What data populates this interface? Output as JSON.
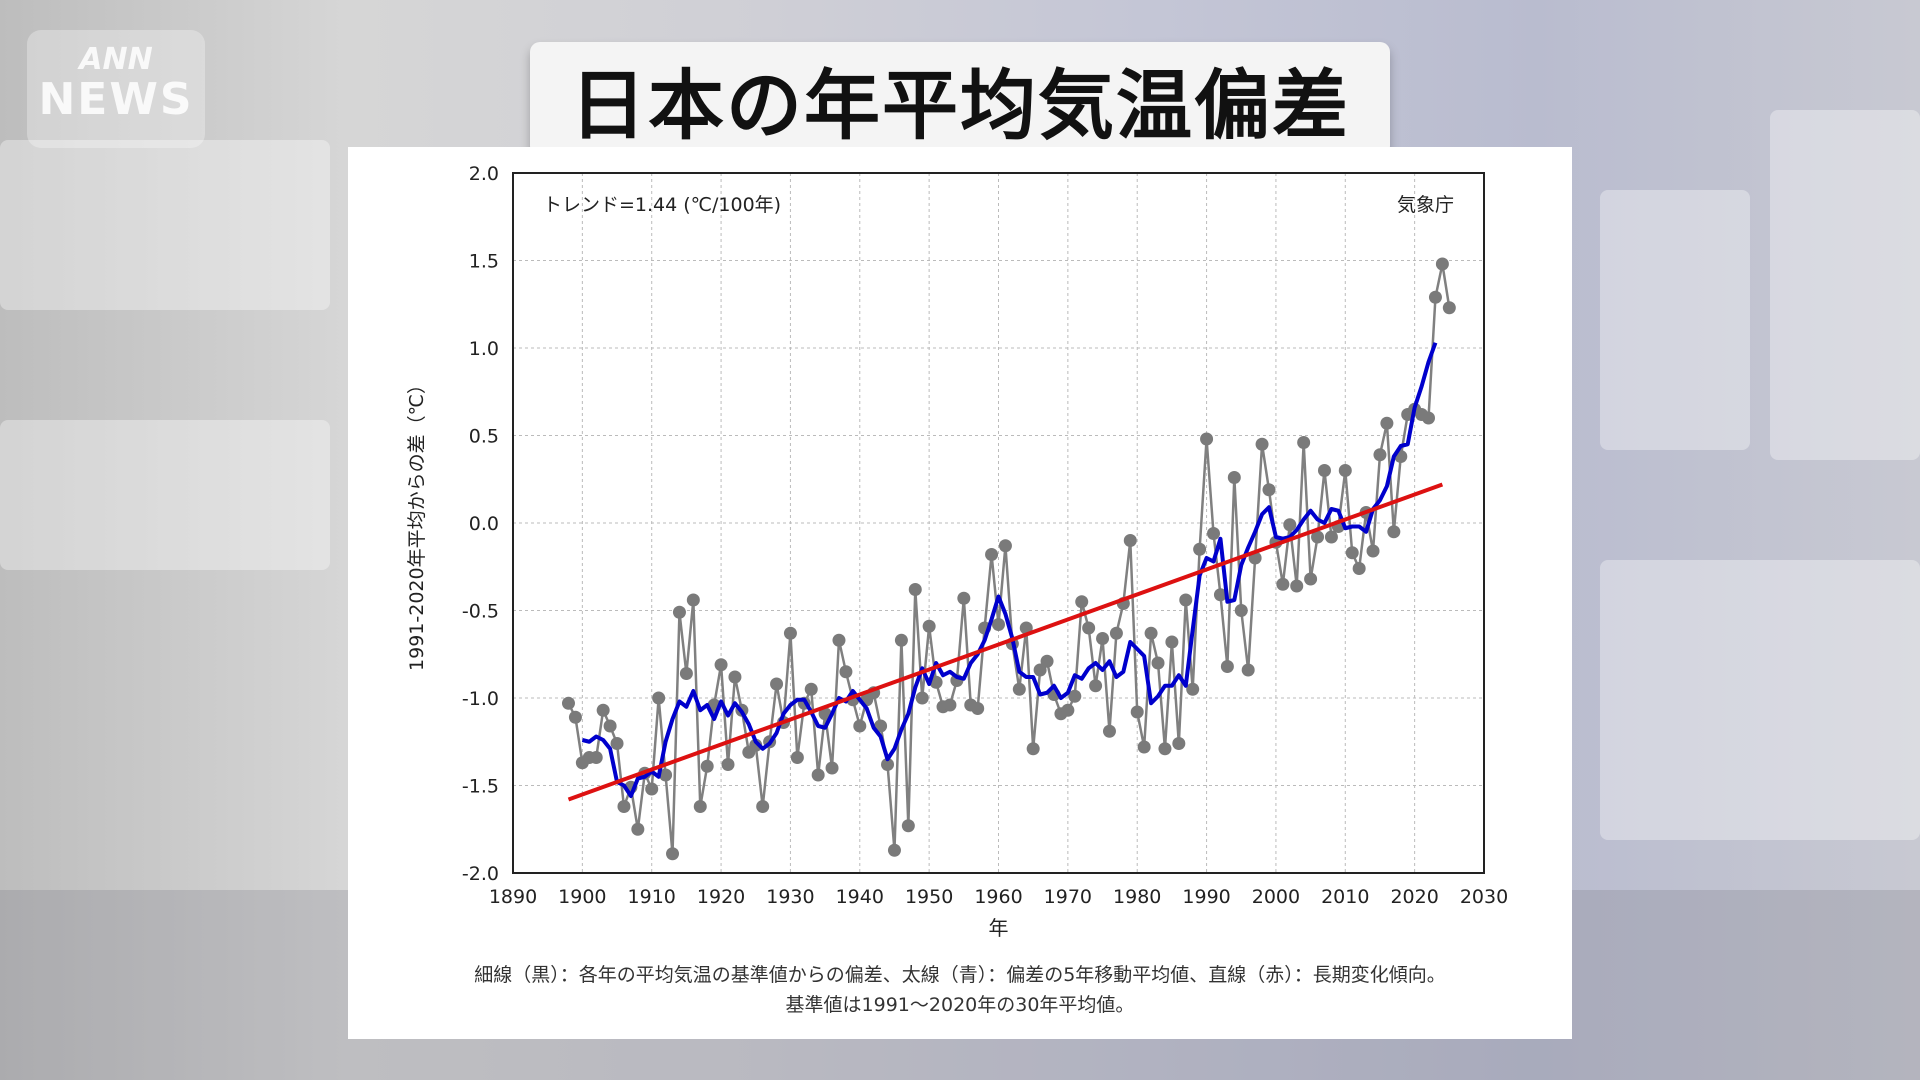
{
  "logo": {
    "line1": "ANN",
    "line2": "NEWS"
  },
  "title": "日本の年平均気温偏差",
  "chart_data": {
    "type": "line",
    "trend_label": "トレンド=1.44 (℃/100年)",
    "source_label": "気象庁",
    "xlabel": "年",
    "ylabel": "1991-2020年平均からの差（℃）",
    "xlim": [
      1890,
      2030
    ],
    "ylim": [
      -2.0,
      2.0
    ],
    "xticks": [
      1890,
      1900,
      1910,
      1920,
      1930,
      1940,
      1950,
      1960,
      1970,
      1980,
      1990,
      2000,
      2010,
      2020,
      2030
    ],
    "yticks": [
      -2.0,
      -1.5,
      -1.0,
      -0.5,
      0.0,
      0.5,
      1.0,
      1.5,
      2.0
    ],
    "ytick_labels": [
      "-2.0",
      "-1.5",
      "-1.0",
      "-0.5",
      "0.0",
      "0.5",
      "1.0",
      "1.5",
      "2.0"
    ],
    "grid": true,
    "series": [
      {
        "name": "細線（黒）",
        "color": "#808080",
        "x": [
          1898,
          1899,
          1900,
          1901,
          1902,
          1903,
          1904,
          1905,
          1906,
          1907,
          1908,
          1909,
          1910,
          1911,
          1912,
          1913,
          1914,
          1915,
          1916,
          1917,
          1918,
          1919,
          1920,
          1921,
          1922,
          1923,
          1924,
          1925,
          1926,
          1927,
          1928,
          1929,
          1930,
          1931,
          1932,
          1933,
          1934,
          1935,
          1936,
          1937,
          1938,
          1939,
          1940,
          1941,
          1942,
          1943,
          1944,
          1945,
          1946,
          1947,
          1948,
          1949,
          1950,
          1951,
          1952,
          1953,
          1954,
          1955,
          1956,
          1957,
          1958,
          1959,
          1960,
          1961,
          1962,
          1963,
          1964,
          1965,
          1966,
          1967,
          1968,
          1969,
          1970,
          1971,
          1972,
          1973,
          1974,
          1975,
          1976,
          1977,
          1978,
          1979,
          1980,
          1981,
          1982,
          1983,
          1984,
          1985,
          1986,
          1987,
          1988,
          1989,
          1990,
          1991,
          1992,
          1993,
          1994,
          1995,
          1996,
          1997,
          1998,
          1999,
          2000,
          2001,
          2002,
          2003,
          2004,
          2005,
          2006,
          2007,
          2008,
          2009,
          2010,
          2011,
          2012,
          2013,
          2014,
          2015,
          2016,
          2017,
          2018,
          2019,
          2020,
          2021,
          2022,
          2023,
          2024,
          2025
        ],
        "values": [
          -1.03,
          -1.11,
          -1.37,
          -1.34,
          -1.34,
          -1.07,
          -1.16,
          -1.26,
          -1.62,
          -1.51,
          -1.75,
          -1.43,
          -1.52,
          -1.0,
          -1.44,
          -1.89,
          -0.51,
          -0.86,
          -0.44,
          -1.62,
          -1.39,
          -1.04,
          -0.81,
          -1.38,
          -0.88,
          -1.07,
          -1.31,
          -1.27,
          -1.62,
          -1.25,
          -0.92,
          -1.14,
          -0.63,
          -1.34,
          -1.03,
          -0.95,
          -1.44,
          -1.09,
          -1.4,
          -0.67,
          -0.85,
          -1.01,
          -1.16,
          -1.01,
          -0.97,
          -1.16,
          -1.38,
          -1.87,
          -0.67,
          -1.73,
          -0.38,
          -1.0,
          -0.59,
          -0.91,
          -1.05,
          -1.04,
          -0.9,
          -0.43,
          -1.04,
          -1.06,
          -0.6,
          -0.18,
          -0.58,
          -0.13,
          -0.69,
          -0.95,
          -0.6,
          -1.29,
          -0.84,
          -0.79,
          -0.98,
          -1.09,
          -1.07,
          -0.99,
          -0.45,
          -0.6,
          -0.93,
          -0.66,
          -1.19,
          -0.63,
          -0.46,
          -0.1,
          -1.08,
          -1.28,
          -0.63,
          -0.8,
          -1.29,
          -0.68,
          -1.26,
          -0.44,
          -0.95,
          -0.15,
          0.48,
          -0.06,
          -0.41,
          -0.82,
          0.26,
          -0.5,
          -0.84,
          -0.2,
          0.45,
          0.19,
          -0.11,
          -0.35,
          -0.01,
          -0.36,
          0.46,
          -0.32,
          -0.08,
          0.3,
          -0.08,
          -0.02,
          0.3,
          -0.17,
          -0.26,
          0.06,
          -0.16,
          0.39,
          0.57,
          -0.05,
          0.38,
          0.62,
          0.65,
          0.62,
          0.6,
          1.29,
          1.48,
          1.23
        ]
      },
      {
        "name": "太線（青）",
        "color": "#0000cc",
        "x": [
          1900,
          1901,
          1902,
          1903,
          1904,
          1905,
          1906,
          1907,
          1908,
          1909,
          1910,
          1911,
          1912,
          1913,
          1914,
          1915,
          1916,
          1917,
          1918,
          1919,
          1920,
          1921,
          1922,
          1923,
          1924,
          1925,
          1926,
          1927,
          1928,
          1929,
          1930,
          1931,
          1932,
          1933,
          1934,
          1935,
          1936,
          1937,
          1938,
          1939,
          1940,
          1941,
          1942,
          1943,
          1944,
          1945,
          1946,
          1947,
          1948,
          1949,
          1950,
          1951,
          1952,
          1953,
          1954,
          1955,
          1956,
          1957,
          1958,
          1959,
          1960,
          1961,
          1962,
          1963,
          1964,
          1965,
          1966,
          1967,
          1968,
          1969,
          1970,
          1971,
          1972,
          1973,
          1974,
          1975,
          1976,
          1977,
          1978,
          1979,
          1980,
          1981,
          1982,
          1983,
          1984,
          1985,
          1986,
          1987,
          1988,
          1989,
          1990,
          1991,
          1992,
          1993,
          1994,
          1995,
          1996,
          1997,
          1998,
          1999,
          2000,
          2001,
          2002,
          2003,
          2004,
          2005,
          2006,
          2007,
          2008,
          2009,
          2010,
          2011,
          2012,
          2013,
          2014,
          2015,
          2016,
          2017,
          2018,
          2019,
          2020,
          2021,
          2022,
          2023
        ],
        "values": [
          -1.24,
          -1.25,
          -1.22,
          -1.24,
          -1.29,
          -1.48,
          -1.5,
          -1.56,
          -1.46,
          -1.45,
          -1.42,
          -1.45,
          -1.25,
          -1.12,
          -1.02,
          -1.05,
          -0.96,
          -1.07,
          -1.04,
          -1.12,
          -1.02,
          -1.1,
          -1.03,
          -1.08,
          -1.15,
          -1.25,
          -1.29,
          -1.26,
          -1.2,
          -1.09,
          -1.04,
          -1.01,
          -1.01,
          -1.08,
          -1.16,
          -1.17,
          -1.09,
          -1.0,
          -1.02,
          -0.96,
          -1.01,
          -1.06,
          -1.17,
          -1.22,
          -1.35,
          -1.29,
          -1.18,
          -1.09,
          -0.94,
          -0.83,
          -0.92,
          -0.8,
          -0.87,
          -0.85,
          -0.88,
          -0.89,
          -0.8,
          -0.75,
          -0.67,
          -0.55,
          -0.42,
          -0.52,
          -0.66,
          -0.85,
          -0.88,
          -0.88,
          -0.98,
          -0.97,
          -0.93,
          -1.0,
          -0.97,
          -0.87,
          -0.89,
          -0.83,
          -0.8,
          -0.84,
          -0.79,
          -0.88,
          -0.85,
          -0.68,
          -0.72,
          -0.76,
          -1.03,
          -0.99,
          -0.93,
          -0.93,
          -0.87,
          -0.93,
          -0.61,
          -0.3,
          -0.2,
          -0.22,
          -0.09,
          -0.45,
          -0.44,
          -0.24,
          -0.14,
          -0.05,
          0.05,
          0.09,
          -0.08,
          -0.09,
          -0.08,
          -0.04,
          0.02,
          0.07,
          0.02,
          0.0,
          0.08,
          0.07,
          -0.03,
          -0.02,
          -0.02,
          -0.05,
          0.08,
          0.13,
          0.21,
          0.38,
          0.44,
          0.45,
          0.66,
          0.78,
          0.92,
          1.03
        ]
      },
      {
        "name": "直線（赤）",
        "color": "#dd1111",
        "x": [
          1898,
          2024
        ],
        "values": [
          -1.58,
          0.22
        ]
      }
    ]
  },
  "caption": {
    "line1": "細線（黒）：各年の平均気温の基準値からの偏差、太線（青）：偏差の5年移動平均値、直線（赤）：長期変化傾向。",
    "line2": "基準値は1991～2020年の30年平均値。"
  }
}
